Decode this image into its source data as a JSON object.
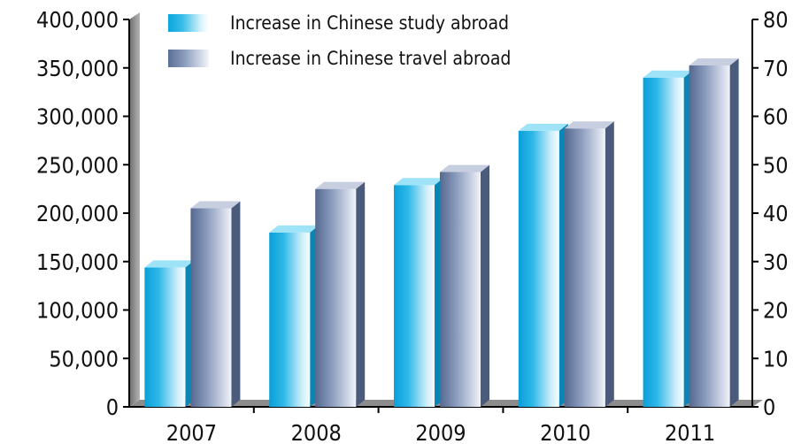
{
  "chart_data": {
    "type": "bar",
    "categories": [
      "2007",
      "2008",
      "2009",
      "2010",
      "2011"
    ],
    "series": [
      {
        "name": "Increase in Chinese study abroad",
        "axis": "left",
        "values": [
          144000,
          180000,
          229000,
          285000,
          340000
        ],
        "color": "#1ab3e6"
      },
      {
        "name": "Increase in Chinese travel abroad",
        "axis": "right",
        "values": [
          41,
          45,
          48.5,
          57.5,
          70.5
        ],
        "color": "#7d8fb3"
      }
    ],
    "yleft": {
      "lim": [
        0,
        400000
      ],
      "ticks": [
        "0",
        "50,000",
        "100,000",
        "150,000",
        "200,000",
        "250,000",
        "300,000",
        "350,000",
        "400,000"
      ]
    },
    "yright": {
      "lim": [
        0,
        80
      ],
      "ticks": [
        "0",
        "10",
        "20",
        "30",
        "40",
        "50",
        "60",
        "70",
        "80"
      ]
    },
    "legend_position": "top"
  }
}
